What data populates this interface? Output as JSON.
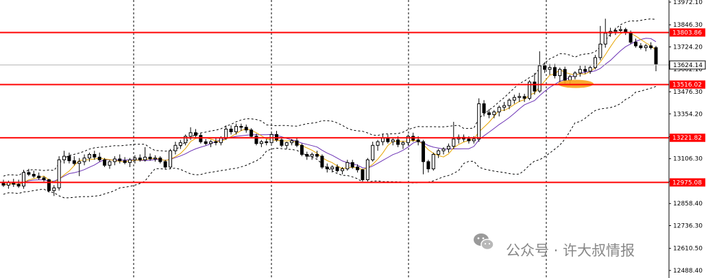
{
  "chart_data": {
    "type": "candlestick",
    "title": "",
    "xlabel": "",
    "ylabel": "",
    "ylim": [
      12440,
      13980
    ],
    "y_ticks": [
      "13972.10",
      "13846.30",
      "13724.20",
      "13602.10",
      "13476.30",
      "13354.20",
      "13228.40",
      "13106.30",
      "12980.50",
      "12858.40",
      "12736.30",
      "12610.50",
      "12488.40"
    ],
    "current_price": {
      "value": 13624.14,
      "label": "13624.14"
    },
    "levels": [
      {
        "value": 13803.86,
        "label": "13803.86"
      },
      {
        "value": 13516.02,
        "label": "13516.02"
      },
      {
        "value": 13221.82,
        "label": "13221.82"
      },
      {
        "value": 12975.08,
        "label": "12975.08"
      }
    ],
    "candles": [
      {
        "o": 12970,
        "h": 12990,
        "l": 12950,
        "c": 12960
      },
      {
        "o": 12960,
        "h": 12985,
        "l": 12940,
        "c": 12975
      },
      {
        "o": 12975,
        "h": 12995,
        "l": 12950,
        "c": 12965
      },
      {
        "o": 12965,
        "h": 12990,
        "l": 12945,
        "c": 12955
      },
      {
        "o": 12955,
        "h": 13045,
        "l": 12940,
        "c": 13030
      },
      {
        "o": 13030,
        "h": 13050,
        "l": 13010,
        "c": 13020
      },
      {
        "o": 13020,
        "h": 13040,
        "l": 13000,
        "c": 13010
      },
      {
        "o": 13010,
        "h": 13030,
        "l": 12990,
        "c": 13000
      },
      {
        "o": 13000,
        "h": 13010,
        "l": 12980,
        "c": 12990
      },
      {
        "o": 12990,
        "h": 12995,
        "l": 12920,
        "c": 12930
      },
      {
        "o": 12930,
        "h": 12960,
        "l": 12900,
        "c": 12945
      },
      {
        "o": 12945,
        "h": 13120,
        "l": 12930,
        "c": 13100
      },
      {
        "o": 13100,
        "h": 13150,
        "l": 13080,
        "c": 13120
      },
      {
        "o": 13120,
        "h": 13140,
        "l": 13080,
        "c": 13095
      },
      {
        "o": 13095,
        "h": 13120,
        "l": 13070,
        "c": 13080
      },
      {
        "o": 13080,
        "h": 13110,
        "l": 13010,
        "c": 13090
      },
      {
        "o": 13090,
        "h": 13130,
        "l": 13070,
        "c": 13110
      },
      {
        "o": 13110,
        "h": 13140,
        "l": 13090,
        "c": 13130
      },
      {
        "o": 13130,
        "h": 13150,
        "l": 13100,
        "c": 13115
      },
      {
        "o": 13115,
        "h": 13140,
        "l": 13090,
        "c": 13100
      },
      {
        "o": 13100,
        "h": 13110,
        "l": 13060,
        "c": 13070
      },
      {
        "o": 13070,
        "h": 13100,
        "l": 13050,
        "c": 13090
      },
      {
        "o": 13090,
        "h": 13120,
        "l": 13070,
        "c": 13105
      },
      {
        "o": 13105,
        "h": 13130,
        "l": 13080,
        "c": 13095
      },
      {
        "o": 13095,
        "h": 13115,
        "l": 13075,
        "c": 13085
      },
      {
        "o": 13085,
        "h": 13110,
        "l": 13060,
        "c": 13100
      },
      {
        "o": 13100,
        "h": 13125,
        "l": 13080,
        "c": 13110
      },
      {
        "o": 13110,
        "h": 13130,
        "l": 13090,
        "c": 13100
      },
      {
        "o": 13100,
        "h": 13170,
        "l": 13090,
        "c": 13115
      },
      {
        "o": 13115,
        "h": 13135,
        "l": 13095,
        "c": 13105
      },
      {
        "o": 13105,
        "h": 13125,
        "l": 13090,
        "c": 13110
      },
      {
        "o": 13110,
        "h": 13120,
        "l": 13080,
        "c": 13090
      },
      {
        "o": 13090,
        "h": 13100,
        "l": 13050,
        "c": 13060
      },
      {
        "o": 13060,
        "h": 13160,
        "l": 13050,
        "c": 13150
      },
      {
        "o": 13150,
        "h": 13200,
        "l": 13130,
        "c": 13180
      },
      {
        "o": 13180,
        "h": 13210,
        "l": 13160,
        "c": 13195
      },
      {
        "o": 13195,
        "h": 13240,
        "l": 13180,
        "c": 13230
      },
      {
        "o": 13230,
        "h": 13280,
        "l": 13210,
        "c": 13250
      },
      {
        "o": 13250,
        "h": 13270,
        "l": 13220,
        "c": 13235
      },
      {
        "o": 13235,
        "h": 13250,
        "l": 13190,
        "c": 13200
      },
      {
        "o": 13200,
        "h": 13215,
        "l": 13180,
        "c": 13190
      },
      {
        "o": 13190,
        "h": 13210,
        "l": 13170,
        "c": 13200
      },
      {
        "o": 13200,
        "h": 13220,
        "l": 13180,
        "c": 13195
      },
      {
        "o": 13195,
        "h": 13230,
        "l": 13180,
        "c": 13220
      },
      {
        "o": 13220,
        "h": 13290,
        "l": 13210,
        "c": 13270
      },
      {
        "o": 13270,
        "h": 13290,
        "l": 13240,
        "c": 13255
      },
      {
        "o": 13255,
        "h": 13300,
        "l": 13240,
        "c": 13285
      },
      {
        "o": 13285,
        "h": 13300,
        "l": 13260,
        "c": 13280
      },
      {
        "o": 13280,
        "h": 13295,
        "l": 13250,
        "c": 13265
      },
      {
        "o": 13265,
        "h": 13275,
        "l": 13220,
        "c": 13230
      },
      {
        "o": 13230,
        "h": 13245,
        "l": 13180,
        "c": 13190
      },
      {
        "o": 13190,
        "h": 13210,
        "l": 13170,
        "c": 13200
      },
      {
        "o": 13200,
        "h": 13215,
        "l": 13180,
        "c": 13195
      },
      {
        "o": 13195,
        "h": 13250,
        "l": 13190,
        "c": 13240
      },
      {
        "o": 13240,
        "h": 13260,
        "l": 13200,
        "c": 13210
      },
      {
        "o": 13210,
        "h": 13220,
        "l": 13170,
        "c": 13180
      },
      {
        "o": 13180,
        "h": 13200,
        "l": 13160,
        "c": 13195
      },
      {
        "o": 13195,
        "h": 13215,
        "l": 13180,
        "c": 13205
      },
      {
        "o": 13205,
        "h": 13220,
        "l": 13170,
        "c": 13180
      },
      {
        "o": 13180,
        "h": 13190,
        "l": 13120,
        "c": 13130
      },
      {
        "o": 13130,
        "h": 13145,
        "l": 13100,
        "c": 13120
      },
      {
        "o": 13120,
        "h": 13140,
        "l": 13100,
        "c": 13130
      },
      {
        "o": 13130,
        "h": 13150,
        "l": 13110,
        "c": 13120
      },
      {
        "o": 13120,
        "h": 13130,
        "l": 13050,
        "c": 13060
      },
      {
        "o": 13060,
        "h": 13080,
        "l": 13030,
        "c": 13050
      },
      {
        "o": 13050,
        "h": 13070,
        "l": 13030,
        "c": 13060
      },
      {
        "o": 13060,
        "h": 13075,
        "l": 13030,
        "c": 13040
      },
      {
        "o": 13040,
        "h": 13060,
        "l": 13020,
        "c": 13050
      },
      {
        "o": 13050,
        "h": 13100,
        "l": 13040,
        "c": 13085
      },
      {
        "o": 13085,
        "h": 13100,
        "l": 13050,
        "c": 13060
      },
      {
        "o": 13060,
        "h": 13075,
        "l": 13030,
        "c": 13045
      },
      {
        "o": 13045,
        "h": 13050,
        "l": 12980,
        "c": 12990
      },
      {
        "o": 12990,
        "h": 13110,
        "l": 12980,
        "c": 13100
      },
      {
        "o": 13100,
        "h": 13200,
        "l": 13090,
        "c": 13180
      },
      {
        "o": 13180,
        "h": 13210,
        "l": 13150,
        "c": 13200
      },
      {
        "o": 13200,
        "h": 13240,
        "l": 13180,
        "c": 13220
      },
      {
        "o": 13220,
        "h": 13240,
        "l": 13190,
        "c": 13200
      },
      {
        "o": 13200,
        "h": 13220,
        "l": 13180,
        "c": 13210
      },
      {
        "o": 13210,
        "h": 13230,
        "l": 13170,
        "c": 13185
      },
      {
        "o": 13185,
        "h": 13205,
        "l": 13160,
        "c": 13195
      },
      {
        "o": 13195,
        "h": 13240,
        "l": 13180,
        "c": 13230
      },
      {
        "o": 13230,
        "h": 13250,
        "l": 13200,
        "c": 13210
      },
      {
        "o": 13210,
        "h": 13230,
        "l": 13180,
        "c": 13200
      },
      {
        "o": 13200,
        "h": 13210,
        "l": 13020,
        "c": 13090
      },
      {
        "o": 13090,
        "h": 13100,
        "l": 13030,
        "c": 13050
      },
      {
        "o": 13050,
        "h": 13140,
        "l": 13040,
        "c": 13130
      },
      {
        "o": 13130,
        "h": 13160,
        "l": 13110,
        "c": 13150
      },
      {
        "o": 13150,
        "h": 13170,
        "l": 13130,
        "c": 13160
      },
      {
        "o": 13160,
        "h": 13190,
        "l": 13140,
        "c": 13175
      },
      {
        "o": 13175,
        "h": 13310,
        "l": 13160,
        "c": 13215
      },
      {
        "o": 13215,
        "h": 13240,
        "l": 13190,
        "c": 13225
      },
      {
        "o": 13225,
        "h": 13240,
        "l": 13200,
        "c": 13215
      },
      {
        "o": 13215,
        "h": 13230,
        "l": 13190,
        "c": 13205
      },
      {
        "o": 13205,
        "h": 13230,
        "l": 13190,
        "c": 13215
      },
      {
        "o": 13215,
        "h": 13440,
        "l": 13200,
        "c": 13410
      },
      {
        "o": 13410,
        "h": 13430,
        "l": 13340,
        "c": 13360
      },
      {
        "o": 13360,
        "h": 13380,
        "l": 13330,
        "c": 13350
      },
      {
        "o": 13350,
        "h": 13375,
        "l": 13330,
        "c": 13365
      },
      {
        "o": 13365,
        "h": 13400,
        "l": 13340,
        "c": 13390
      },
      {
        "o": 13390,
        "h": 13420,
        "l": 13370,
        "c": 13400
      },
      {
        "o": 13400,
        "h": 13440,
        "l": 13380,
        "c": 13430
      },
      {
        "o": 13430,
        "h": 13460,
        "l": 13410,
        "c": 13445
      },
      {
        "o": 13445,
        "h": 13470,
        "l": 13420,
        "c": 13450
      },
      {
        "o": 13450,
        "h": 13465,
        "l": 13420,
        "c": 13440
      },
      {
        "o": 13440,
        "h": 13540,
        "l": 13430,
        "c": 13530
      },
      {
        "o": 13530,
        "h": 13580,
        "l": 13460,
        "c": 13480
      },
      {
        "o": 13480,
        "h": 13700,
        "l": 13470,
        "c": 13620
      },
      {
        "o": 13620,
        "h": 13640,
        "l": 13580,
        "c": 13600
      },
      {
        "o": 13600,
        "h": 13630,
        "l": 13570,
        "c": 13610
      },
      {
        "o": 13610,
        "h": 13630,
        "l": 13550,
        "c": 13565
      },
      {
        "o": 13565,
        "h": 13610,
        "l": 13530,
        "c": 13600
      },
      {
        "o": 13600,
        "h": 13615,
        "l": 13520,
        "c": 13540
      },
      {
        "o": 13540,
        "h": 13570,
        "l": 13520,
        "c": 13560
      },
      {
        "o": 13560,
        "h": 13590,
        "l": 13545,
        "c": 13580
      },
      {
        "o": 13580,
        "h": 13620,
        "l": 13560,
        "c": 13600
      },
      {
        "o": 13600,
        "h": 13620,
        "l": 13575,
        "c": 13590
      },
      {
        "o": 13590,
        "h": 13620,
        "l": 13575,
        "c": 13610
      },
      {
        "o": 13610,
        "h": 13680,
        "l": 13600,
        "c": 13665
      },
      {
        "o": 13665,
        "h": 13840,
        "l": 13650,
        "c": 13740
      },
      {
        "o": 13740,
        "h": 13880,
        "l": 13720,
        "c": 13800
      },
      {
        "o": 13800,
        "h": 13830,
        "l": 13780,
        "c": 13810
      },
      {
        "o": 13810,
        "h": 13830,
        "l": 13790,
        "c": 13815
      },
      {
        "o": 13815,
        "h": 13840,
        "l": 13800,
        "c": 13820
      },
      {
        "o": 13820,
        "h": 13830,
        "l": 13790,
        "c": 13805
      },
      {
        "o": 13805,
        "h": 13815,
        "l": 13740,
        "c": 13750
      },
      {
        "o": 13750,
        "h": 13770,
        "l": 13720,
        "c": 13730
      },
      {
        "o": 13730,
        "h": 13745,
        "l": 13710,
        "c": 13720
      },
      {
        "o": 13720,
        "h": 13740,
        "l": 13700,
        "c": 13730
      },
      {
        "o": 13730,
        "h": 13750,
        "l": 13710,
        "c": 13720
      },
      {
        "o": 13720,
        "h": 13730,
        "l": 13590,
        "c": 13630
      }
    ]
  },
  "watermark": {
    "text": "公众号 · 许大叔情报",
    "icon": "wechat-icon"
  },
  "colors": {
    "level_line": "#ff0000",
    "level_label_bg": "#ff0000",
    "current_line": "#b0b0b0",
    "current_label_bg": "#ffffff",
    "ma_fast": "#e6a400",
    "ma_slow": "#6a2fb4",
    "bands": "#000000",
    "candle": "#000000",
    "highlight": "#f7a11a",
    "grid": "#000000",
    "watermark": "#888888"
  }
}
